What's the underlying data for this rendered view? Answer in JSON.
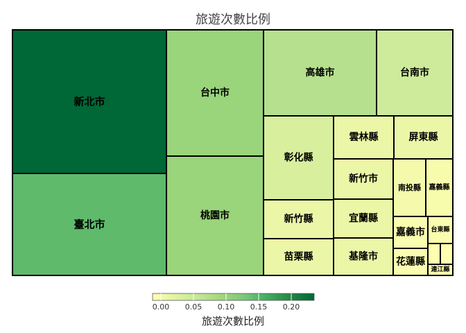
{
  "chart_data": {
    "type": "treemap",
    "title": "旅遊次數比例",
    "legend": {
      "title": "旅遊次數比例",
      "placement": "bottom",
      "ticks": [
        "0.00",
        "0.05",
        "0.10",
        "0.15",
        "0.20"
      ],
      "colors": [
        "#FFFFB2",
        "#E0F3A0",
        "#C2E699",
        "#A2D77C",
        "#78C679",
        "#41AB5D",
        "#238443",
        "#006837"
      ]
    },
    "items": [
      {
        "label": "新北市",
        "value": 0.22
      },
      {
        "label": "臺北市",
        "value": 0.14
      },
      {
        "label": "台中市",
        "value": 0.1
      },
      {
        "label": "桃園市",
        "value": 0.1
      },
      {
        "label": "高雄市",
        "value": 0.075
      },
      {
        "label": "台南市",
        "value": 0.05
      },
      {
        "label": "彰化縣",
        "value": 0.04
      },
      {
        "label": "雲林縣",
        "value": 0.02
      },
      {
        "label": "屏東縣",
        "value": 0.02
      },
      {
        "label": "新竹市",
        "value": 0.02
      },
      {
        "label": "新竹縣",
        "value": 0.02
      },
      {
        "label": "宜蘭縣",
        "value": 0.02
      },
      {
        "label": "苗栗縣",
        "value": 0.02
      },
      {
        "label": "基隆市",
        "value": 0.02
      },
      {
        "label": "南投縣",
        "value": 0.012
      },
      {
        "label": "嘉義縣",
        "value": 0.008
      },
      {
        "label": "嘉義市",
        "value": 0.006
      },
      {
        "label": "台東縣",
        "value": 0.005
      },
      {
        "label": "花蓮縣",
        "value": 0.005
      },
      {
        "label": "連江縣",
        "value": 0.002
      },
      {
        "label": "",
        "value": 0.001
      },
      {
        "label": "",
        "value": 0.001
      }
    ]
  }
}
